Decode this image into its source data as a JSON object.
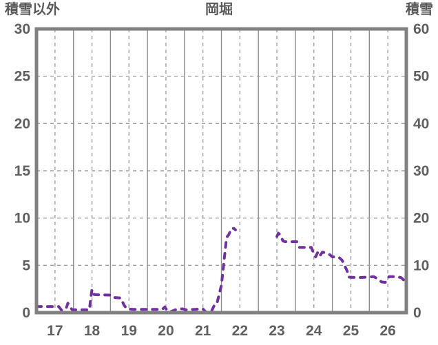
{
  "chart_data": {
    "type": "line",
    "title": "岡堀",
    "legend": "none",
    "grid": {
      "frame_color": "#808080",
      "solid_vertical_color": "#8c8c8c",
      "dashed_line_color": "#a0a0a0",
      "horizontal_lines": "dashed at every labeled step",
      "vertical_lines": "solid at day boundaries, dashed at day midpoints"
    },
    "left_axis": {
      "label": "積雪以外",
      "ticks": [
        0,
        5,
        10,
        15,
        20,
        25,
        30
      ],
      "range": [
        0,
        30
      ]
    },
    "right_axis": {
      "label": "積雪",
      "ticks": [
        0,
        10,
        20,
        30,
        40,
        50,
        60
      ],
      "range": [
        0,
        60
      ]
    },
    "x_axis": {
      "tick_labels": [
        "17",
        "18",
        "19",
        "20",
        "21",
        "22",
        "23",
        "24",
        "25",
        "26"
      ],
      "range": [
        17,
        27
      ],
      "tick_label_position": "centered at each day midpoint"
    },
    "series": [
      {
        "name": "岡堀",
        "axis": "left",
        "color": "#7030A0",
        "style": "dashed, round caps, ~4px wide",
        "segments": [
          [
            [
              17.0,
              0.65
            ],
            [
              17.6,
              0.65
            ],
            [
              17.68,
              0.25
            ],
            [
              17.76,
              0.3
            ],
            [
              17.81,
              0.55
            ],
            [
              17.85,
              1.0
            ],
            [
              17.91,
              0.55
            ],
            [
              17.97,
              0.3
            ],
            [
              18.43,
              0.3
            ],
            [
              18.47,
              1.6
            ],
            [
              18.5,
              2.45
            ],
            [
              18.56,
              1.9
            ],
            [
              19.0,
              1.85
            ],
            [
              19.07,
              1.6
            ],
            [
              19.28,
              1.55
            ],
            [
              19.36,
              0.85
            ],
            [
              19.44,
              0.4
            ],
            [
              19.6,
              0.35
            ],
            [
              20.4,
              0.35
            ],
            [
              20.47,
              0.6
            ],
            [
              20.52,
              0.3
            ],
            [
              20.6,
              0.05
            ],
            [
              20.72,
              0.25
            ],
            [
              20.82,
              0.4
            ],
            [
              20.95,
              0.4
            ],
            [
              21.05,
              0.3
            ],
            [
              21.3,
              0.35
            ],
            [
              21.5,
              0.4
            ],
            [
              21.58,
              0.05
            ],
            [
              21.72,
              0.05
            ],
            [
              21.78,
              0.55
            ],
            [
              21.83,
              0.95
            ],
            [
              21.88,
              1.0
            ],
            [
              22.0,
              2.9
            ],
            [
              22.14,
              7.95
            ],
            [
              22.2,
              8.25
            ],
            [
              22.27,
              8.9
            ],
            [
              22.34,
              8.9
            ],
            [
              22.38,
              8.75
            ]
          ],
          [
            [
              23.5,
              8.05
            ],
            [
              23.54,
              8.4
            ],
            [
              23.6,
              8.2
            ],
            [
              23.66,
              7.6
            ],
            [
              23.72,
              7.5
            ],
            [
              24.04,
              7.5
            ],
            [
              24.11,
              6.9
            ],
            [
              24.43,
              6.9
            ],
            [
              24.49,
              6.3
            ],
            [
              24.55,
              5.9
            ],
            [
              24.61,
              6.45
            ],
            [
              24.67,
              6.05
            ],
            [
              24.73,
              6.4
            ],
            [
              24.82,
              6.3
            ],
            [
              24.92,
              6.15
            ],
            [
              25.0,
              5.9
            ],
            [
              25.13,
              5.9
            ],
            [
              25.19,
              5.8
            ],
            [
              25.26,
              5.55
            ],
            [
              25.33,
              5.0
            ],
            [
              25.4,
              4.4
            ],
            [
              25.45,
              3.75
            ],
            [
              25.7,
              3.7
            ],
            [
              26.12,
              3.8
            ],
            [
              26.22,
              3.6
            ],
            [
              26.33,
              3.25
            ],
            [
              26.43,
              3.2
            ],
            [
              26.53,
              3.8
            ],
            [
              26.75,
              3.8
            ],
            [
              26.86,
              3.7
            ],
            [
              26.94,
              3.4
            ],
            [
              27.0,
              3.05
            ]
          ]
        ]
      }
    ]
  }
}
